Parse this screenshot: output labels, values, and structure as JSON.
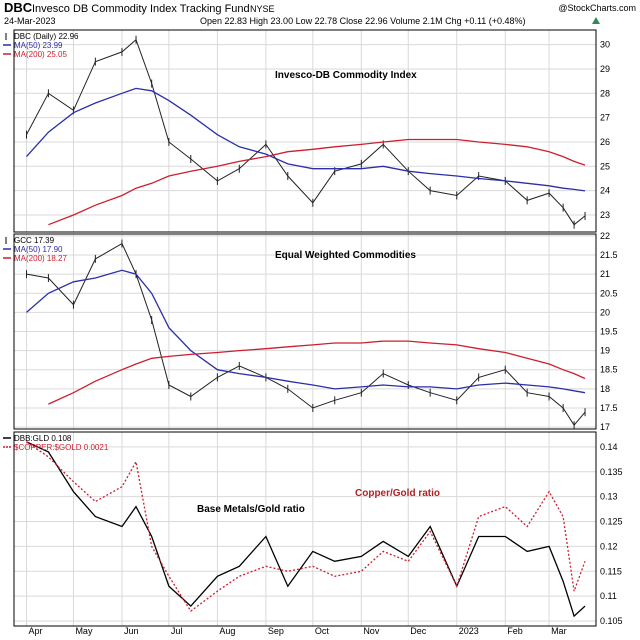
{
  "header": {
    "symbol": "DBC",
    "name": "Invesco DB Commodity Index Tracking Fund",
    "exchange": "NYSE",
    "watermark": "@StockCharts.com",
    "date": "24-Mar-2023",
    "quote": "Open 22.83   High 23.00   Low 22.78   Close 22.96   Volume 2.1M   Chg +0.11 (+0.48%)",
    "up_icon": "triangle-up-icon"
  },
  "colors": {
    "price": "#222222",
    "ma50": "#2b2fa8",
    "ma200": "#cc1f2f",
    "ratio_black": "#000000",
    "ratio_red": "#cc1f2f",
    "grid": "#d9d9d9",
    "frame": "#000000"
  },
  "x_axis": {
    "labels": [
      "Apr",
      "May",
      "Jun",
      "Jul",
      "Aug",
      "Sep",
      "Oct",
      "Nov",
      "Dec",
      "2023",
      "Feb",
      "Mar"
    ]
  },
  "chart_data": [
    {
      "type": "line",
      "title": "Invesco-DB Commodity Index",
      "ylim": [
        22.3,
        30.6
      ],
      "yticks": [
        23,
        24,
        25,
        26,
        27,
        28,
        29,
        30
      ],
      "grid": true,
      "legend_position": "top-left",
      "legend": [
        {
          "text": "DBC (Daily) 22.96",
          "color": "#000000",
          "style": "marker"
        },
        {
          "text": "MA(50) 23.99",
          "color": "#2b2fa8",
          "style": "solid"
        },
        {
          "text": "MA(200) 25.05",
          "color": "#cc1f2f",
          "style": "solid"
        }
      ],
      "x": [
        "2022-04-01",
        "2022-04-15",
        "2022-05-01",
        "2022-05-15",
        "2022-06-01",
        "2022-06-10",
        "2022-06-20",
        "2022-07-01",
        "2022-07-15",
        "2022-08-01",
        "2022-08-15",
        "2022-09-01",
        "2022-09-15",
        "2022-10-01",
        "2022-10-15",
        "2022-11-01",
        "2022-11-15",
        "2022-12-01",
        "2022-12-15",
        "2023-01-01",
        "2023-01-15",
        "2023-02-01",
        "2023-02-15",
        "2023-03-01",
        "2023-03-10",
        "2023-03-17",
        "2023-03-24"
      ],
      "series": [
        {
          "name": "DBC (Daily) 22.96",
          "values": [
            26.3,
            28.0,
            27.3,
            29.3,
            29.7,
            30.2,
            28.4,
            26.0,
            25.3,
            24.4,
            24.9,
            25.9,
            24.6,
            23.5,
            24.8,
            25.1,
            25.9,
            24.8,
            24.0,
            23.8,
            24.6,
            24.4,
            23.6,
            23.9,
            23.3,
            22.6,
            22.96
          ]
        },
        {
          "name": "MA(50) 23.99",
          "values": [
            25.4,
            26.4,
            27.2,
            27.6,
            28.0,
            28.2,
            28.1,
            27.7,
            27.1,
            26.3,
            25.8,
            25.5,
            25.1,
            24.9,
            24.9,
            24.9,
            25.0,
            24.8,
            24.7,
            24.6,
            24.5,
            24.4,
            24.3,
            24.2,
            24.1,
            24.05,
            23.99
          ]
        },
        {
          "name": "MA(200) 25.05",
          "values": [
            null,
            22.6,
            23.0,
            23.4,
            23.8,
            24.1,
            24.3,
            24.6,
            24.8,
            25.0,
            25.2,
            25.4,
            25.6,
            25.7,
            25.8,
            25.9,
            26.0,
            26.1,
            26.1,
            26.1,
            26.0,
            25.9,
            25.8,
            25.6,
            25.4,
            25.2,
            25.05
          ]
        }
      ]
    },
    {
      "type": "line",
      "title": "Equal Weighted Commodities",
      "ylim": [
        16.95,
        22.05
      ],
      "yticks": [
        17.0,
        17.5,
        18.0,
        18.5,
        19.0,
        19.5,
        20.0,
        20.5,
        21.0,
        21.5,
        22.0
      ],
      "grid": true,
      "legend_position": "top-left",
      "legend": [
        {
          "text": "GCC 17.39",
          "color": "#000000",
          "style": "marker"
        },
        {
          "text": "MA(50) 17.90",
          "color": "#2b2fa8",
          "style": "solid"
        },
        {
          "text": "MA(200) 18.27",
          "color": "#cc1f2f",
          "style": "solid"
        }
      ],
      "x": [
        "2022-04-01",
        "2022-04-15",
        "2022-05-01",
        "2022-05-15",
        "2022-06-01",
        "2022-06-10",
        "2022-06-20",
        "2022-07-01",
        "2022-07-15",
        "2022-08-01",
        "2022-08-15",
        "2022-09-01",
        "2022-09-15",
        "2022-10-01",
        "2022-10-15",
        "2022-11-01",
        "2022-11-15",
        "2022-12-01",
        "2022-12-15",
        "2023-01-01",
        "2023-01-15",
        "2023-02-01",
        "2023-02-15",
        "2023-03-01",
        "2023-03-10",
        "2023-03-17",
        "2023-03-24"
      ],
      "series": [
        {
          "name": "GCC 17.39",
          "values": [
            21.0,
            20.9,
            20.2,
            21.4,
            21.8,
            21.0,
            19.8,
            18.1,
            17.8,
            18.3,
            18.6,
            18.3,
            18.0,
            17.5,
            17.7,
            17.9,
            18.4,
            18.1,
            17.9,
            17.7,
            18.3,
            18.5,
            17.9,
            17.8,
            17.5,
            17.05,
            17.39
          ]
        },
        {
          "name": "MA(50) 17.90",
          "values": [
            20.0,
            20.5,
            20.8,
            20.9,
            21.1,
            21.0,
            20.5,
            19.6,
            19.0,
            18.5,
            18.4,
            18.3,
            18.2,
            18.1,
            18.0,
            18.05,
            18.1,
            18.05,
            18.05,
            18.0,
            18.1,
            18.15,
            18.1,
            18.05,
            18.0,
            17.95,
            17.9
          ]
        },
        {
          "name": "MA(200) 18.27",
          "values": [
            null,
            17.6,
            17.9,
            18.2,
            18.5,
            18.65,
            18.8,
            18.85,
            18.9,
            18.95,
            19.0,
            19.05,
            19.1,
            19.15,
            19.2,
            19.2,
            19.25,
            19.25,
            19.2,
            19.15,
            19.05,
            18.95,
            18.8,
            18.65,
            18.5,
            18.4,
            18.27
          ]
        }
      ]
    },
    {
      "type": "line",
      "title": "",
      "ylim": [
        0.104,
        0.143
      ],
      "yticks": [
        0.105,
        0.11,
        0.115,
        0.12,
        0.125,
        0.13,
        0.135,
        0.14
      ],
      "grid": true,
      "legend_position": "top-left",
      "legend": [
        {
          "text": "DBB:GLD 0.108",
          "color": "#000000",
          "style": "solid"
        },
        {
          "text": "$COPPER:$GOLD 0.0021",
          "color": "#cc1f2f",
          "style": "dotted"
        }
      ],
      "annotations": [
        {
          "text": "Base Metals/Gold ratio",
          "color": "#000000"
        },
        {
          "text": "Copper/Gold ratio",
          "color": "#b22222"
        }
      ],
      "x": [
        "2022-04-01",
        "2022-04-15",
        "2022-05-01",
        "2022-05-15",
        "2022-06-01",
        "2022-06-10",
        "2022-06-20",
        "2022-07-01",
        "2022-07-15",
        "2022-08-01",
        "2022-08-15",
        "2022-09-01",
        "2022-09-15",
        "2022-10-01",
        "2022-10-15",
        "2022-11-01",
        "2022-11-15",
        "2022-12-01",
        "2022-12-15",
        "2023-01-01",
        "2023-01-15",
        "2023-02-01",
        "2023-02-15",
        "2023-03-01",
        "2023-03-10",
        "2023-03-17",
        "2023-03-24"
      ],
      "series": [
        {
          "name": "DBB:GLD 0.108",
          "values": [
            0.141,
            0.139,
            0.131,
            0.126,
            0.124,
            0.128,
            0.122,
            0.112,
            0.108,
            0.114,
            0.116,
            0.122,
            0.112,
            0.119,
            0.117,
            0.118,
            0.121,
            0.118,
            0.124,
            0.112,
            0.122,
            0.122,
            0.119,
            0.12,
            0.113,
            0.106,
            0.108
          ]
        },
        {
          "name": "$COPPER:$GOLD 0.0021",
          "values": [
            0.141,
            0.138,
            0.133,
            0.129,
            0.132,
            0.137,
            0.12,
            0.114,
            0.107,
            0.111,
            0.114,
            0.116,
            0.115,
            0.116,
            0.114,
            0.115,
            0.119,
            0.117,
            0.123,
            0.112,
            0.126,
            0.128,
            0.124,
            0.131,
            0.126,
            0.111,
            0.117
          ]
        }
      ]
    }
  ]
}
